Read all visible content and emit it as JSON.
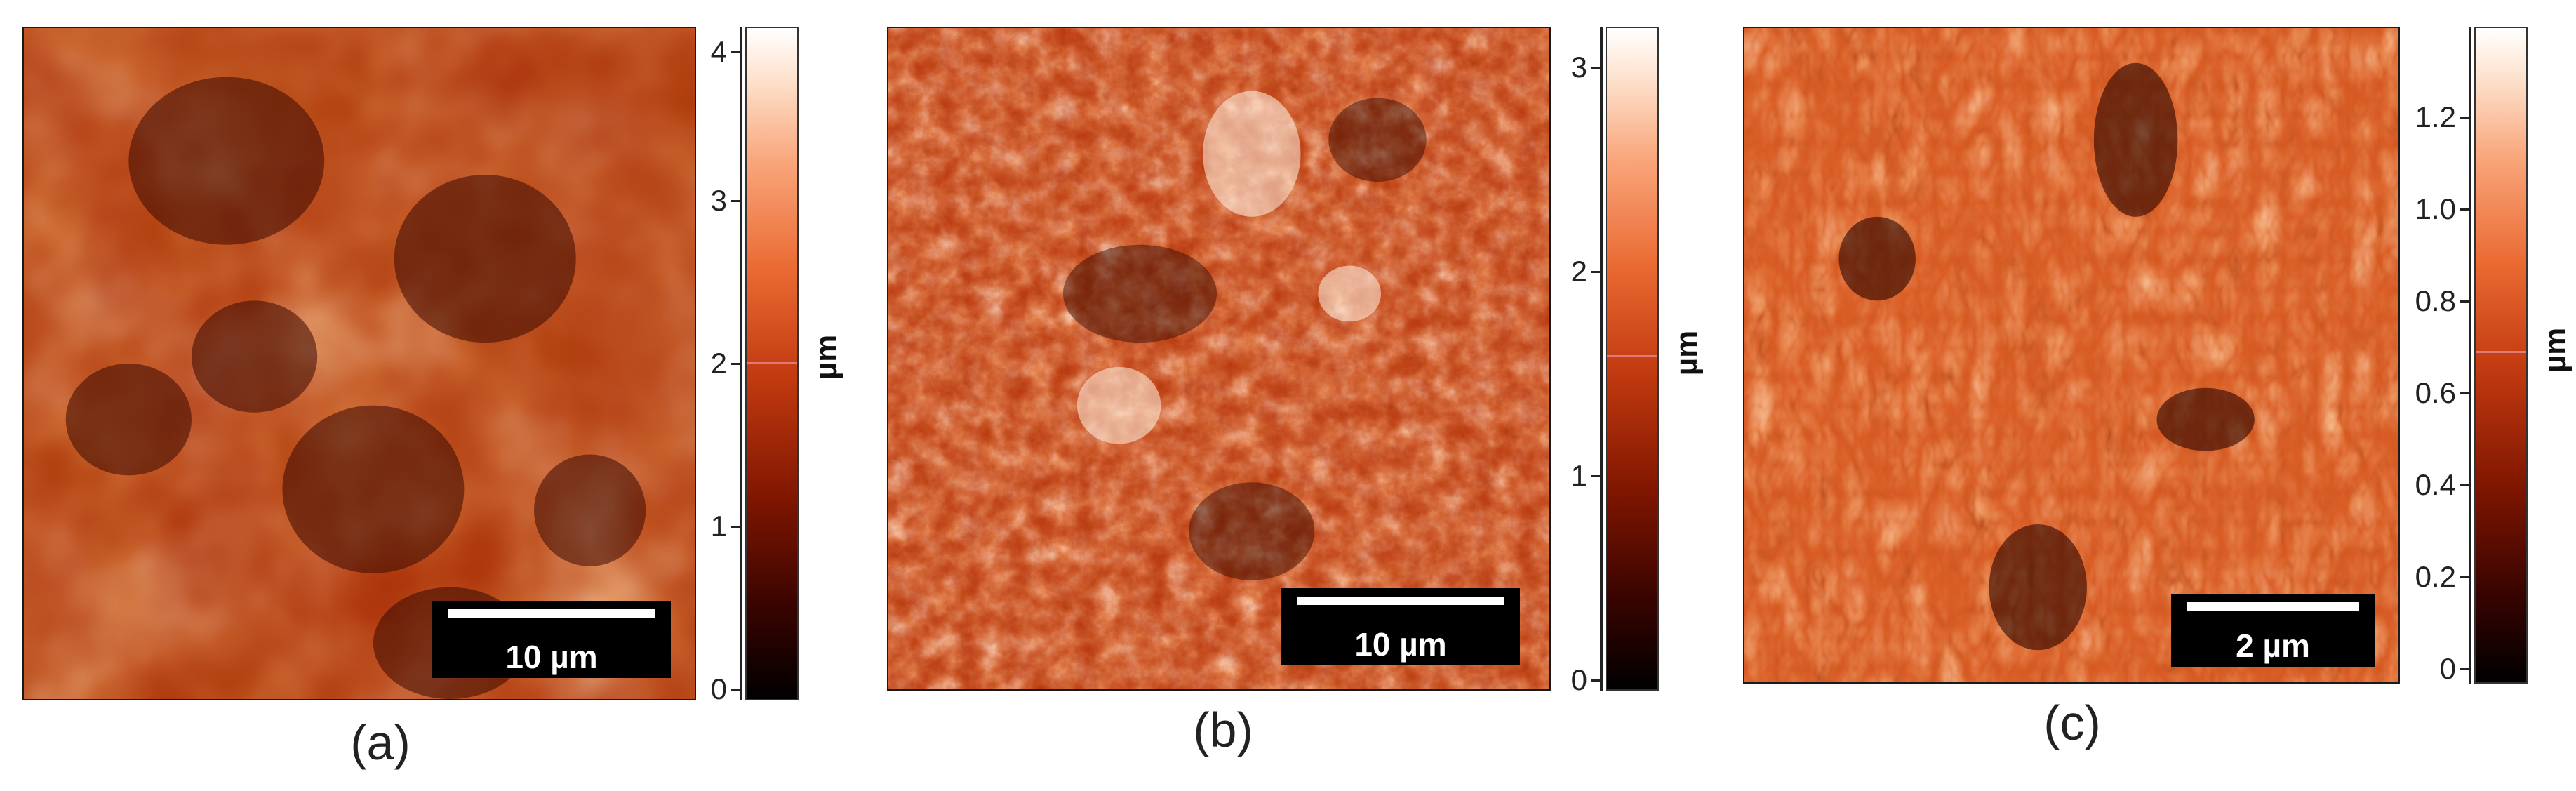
{
  "panels": [
    {
      "label": "(a)",
      "scale_bar": "10 µm",
      "colorbar": {
        "unit": "µm",
        "ticks": [
          "0",
          "1",
          "2",
          "3",
          "4"
        ],
        "max": 4.15,
        "marker_value": 2.1
      },
      "colors": {
        "low": "#1c0200",
        "mid": "#b3300a",
        "high": "#fde8d6"
      }
    },
    {
      "label": "(b)",
      "scale_bar": "10 µm",
      "colorbar": {
        "unit": "µm",
        "ticks": [
          "0",
          "1",
          "2",
          "3"
        ],
        "max": 3.25,
        "marker_value": 1.65
      },
      "colors": {
        "low": "#1a0200",
        "mid": "#b93308",
        "high": "#fff3e6"
      }
    },
    {
      "label": "(c)",
      "scale_bar": "2 µm",
      "colorbar": {
        "unit": "µm",
        "ticks": [
          "0",
          "0.2",
          "0.4",
          "0.6",
          "0.8",
          "1.0",
          "1.2"
        ],
        "max": 1.3,
        "marker_value": 0.66
      },
      "colors": {
        "low": "#200300",
        "mid": "#d2501c",
        "high": "#fff0e0"
      }
    }
  ]
}
